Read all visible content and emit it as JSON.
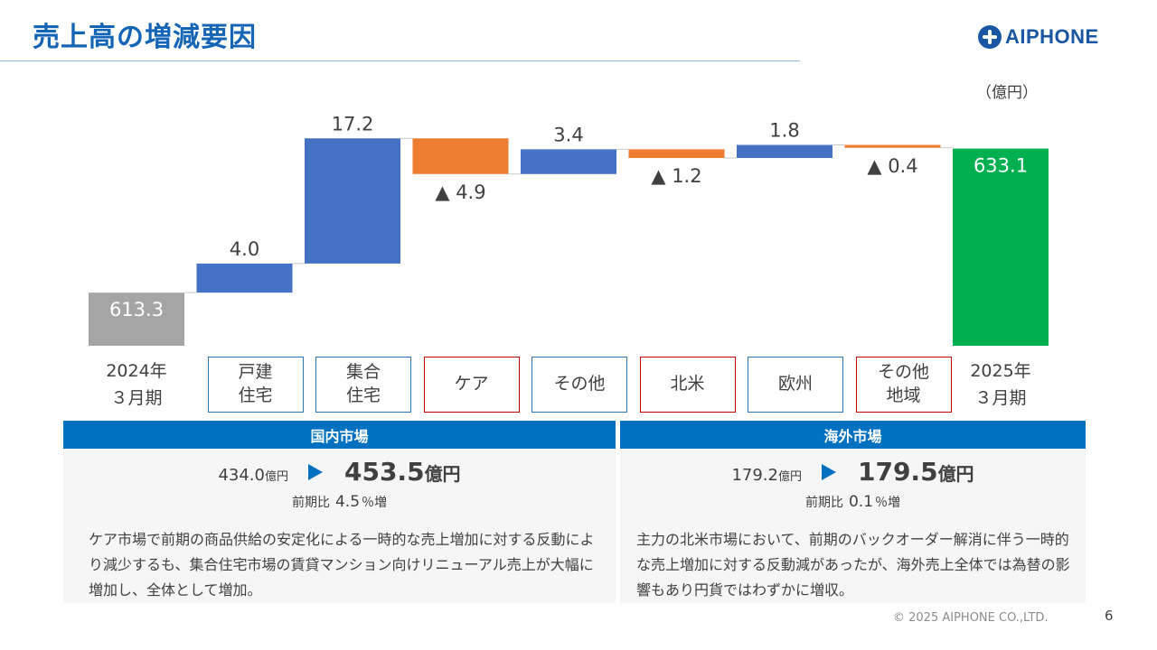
{
  "page": {
    "title": "売上高の増減要因",
    "logo_text": "AIPHONE",
    "unit_label": "（億円）",
    "copyright": "© 2025 AIPHONE CO.,LTD.",
    "page_number": "6"
  },
  "chart_data": {
    "type": "bar",
    "subtype": "waterfall",
    "categories": [
      "2024年\n３月期",
      "戸建\n住宅",
      "集合\n住宅",
      "ケア",
      "その他",
      "北米",
      "欧州",
      "その他\n地域",
      "2025年\n３月期"
    ],
    "values": [
      613.3,
      4.0,
      17.2,
      -4.9,
      3.4,
      -1.2,
      1.8,
      -0.4,
      633.1
    ],
    "kinds": [
      "total",
      "delta",
      "delta",
      "delta",
      "delta",
      "delta",
      "delta",
      "delta",
      "total"
    ],
    "data_labels": [
      "613.3",
      "4.0",
      "17.2",
      "▲ 4.9",
      "3.4",
      "▲ 1.2",
      "1.8",
      "▲ 0.4",
      "633.1"
    ],
    "category_box_colors": [
      "none",
      "#2e75b6",
      "#2e75b6",
      "#c00000",
      "#2e75b6",
      "#c00000",
      "#2e75b6",
      "#c00000",
      "none"
    ],
    "colors": {
      "start": "#a5a5a5",
      "increase": "#4472c4",
      "decrease": "#ed7d31",
      "end": "#00b050",
      "connector": "#c8c8c8"
    },
    "ylim": [
      606,
      639
    ],
    "title": "",
    "xlabel": "",
    "ylabel": "（億円）",
    "grid": false,
    "legend": "none"
  },
  "panels": [
    {
      "header": "国内市場",
      "from_value": "434.0",
      "from_unit": "億円",
      "to_value": "453.5",
      "to_unit": "億円",
      "yoy_label": "前期比",
      "yoy_value": "4.5",
      "yoy_suffix": "％増",
      "text": "ケア市場で前期の商品供給の安定化による一時的な売上増加に対する反動により減少するも、集合住宅市場の賃貸マンション向けリニューアル売上が大幅に増加し、全体として増加。"
    },
    {
      "header": "海外市場",
      "from_value": "179.2",
      "from_unit": "億円",
      "to_value": "179.5",
      "to_unit": "億円",
      "yoy_label": "前期比",
      "yoy_value": "0.1",
      "yoy_suffix": "％増",
      "text": "主力の北米市場において、前期のバックオーダー解消に伴う一時的な売上増加に対する反動減があったが、海外売上全体では為替の影響もあり円貨ではわずかに増収。"
    }
  ]
}
